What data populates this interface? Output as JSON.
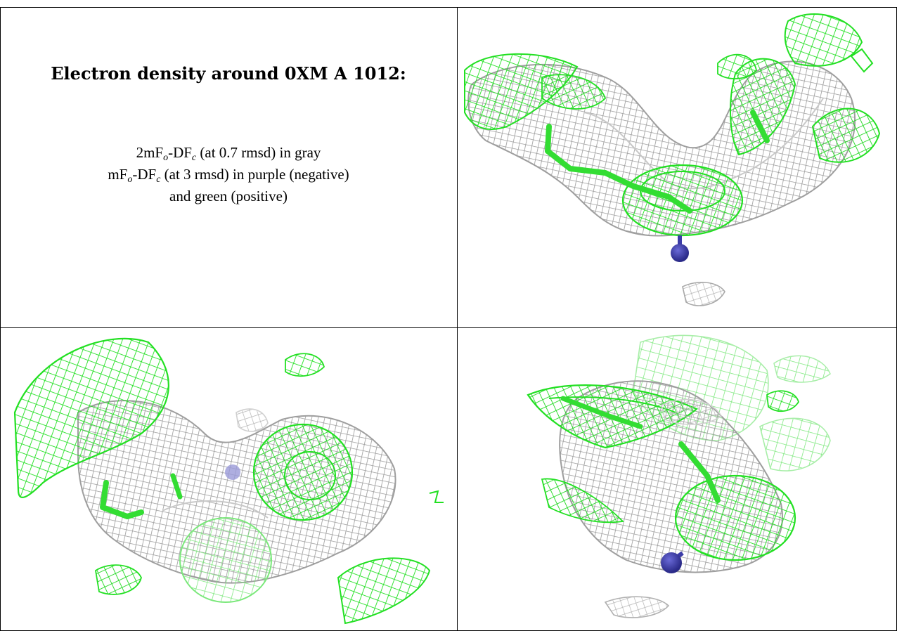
{
  "legend": {
    "title": "Electron density around 0XM A 1012:",
    "line1_pre": "2mF",
    "line1_sub1": "o",
    "line1_mid": "-DF",
    "line1_sub2": "c",
    "line1_post": " (at 0.7 rmsd) in gray",
    "line2_pre": "mF",
    "line2_sub1": "o",
    "line2_mid": "-DF",
    "line2_sub2": "c",
    "line2_post": " (at 3 rmsd) in purple (negative)",
    "line3": "and green (positive)"
  },
  "colors": {
    "gray_mesh": "#a8a8a8",
    "gray_mesh_light": "#d8d8d8",
    "green_mesh": "#22e022",
    "stick_green": "#33dd33",
    "atom_blue": "#3c3ca8",
    "border": "#000000"
  },
  "views": [
    {
      "name": "view-top-right"
    },
    {
      "name": "view-bottom-left"
    },
    {
      "name": "view-bottom-right"
    }
  ]
}
